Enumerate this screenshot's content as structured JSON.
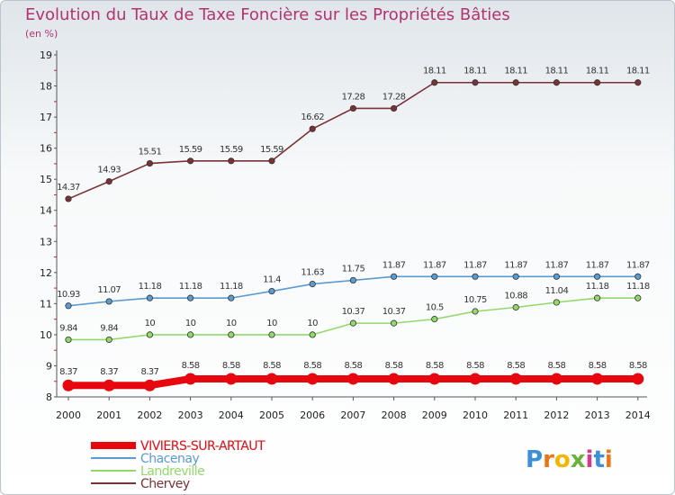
{
  "chart_data": {
    "type": "line",
    "title": "Evolution du Taux de Taxe Foncière sur les Propriétés Bâties",
    "subtitle": "(en %)",
    "xlabel": "",
    "ylabel": "",
    "ylim": [
      8,
      19
    ],
    "yticks": [
      "8",
      "9",
      "10",
      "11",
      "12",
      "13",
      "14",
      "15",
      "16",
      "17",
      "18",
      "19"
    ],
    "grid": false,
    "legend_position": "bottom-left",
    "categories": [
      "2000",
      "2001",
      "2002",
      "2003",
      "2004",
      "2005",
      "2006",
      "2007",
      "2008",
      "2009",
      "2010",
      "2011",
      "2012",
      "2013",
      "2014"
    ],
    "series": [
      {
        "name": "VIVIERS-SUR-ARTAUT",
        "color": "#e8070e",
        "values": [
          8.37,
          8.37,
          8.37,
          8.58,
          8.58,
          8.58,
          8.58,
          8.58,
          8.58,
          8.58,
          8.58,
          8.58,
          8.58,
          8.58,
          8.58
        ],
        "labels": [
          "8.37",
          "8.37",
          "8.37",
          "8.58",
          "8.58",
          "8.58",
          "8.58",
          "8.58",
          "8.58",
          "8.58",
          "8.58",
          "8.58",
          "8.58",
          "8.58",
          "8.58"
        ]
      },
      {
        "name": "Chacenay",
        "color": "#5b9bd0",
        "values": [
          10.93,
          11.07,
          11.18,
          11.18,
          11.18,
          11.4,
          11.63,
          11.75,
          11.87,
          11.87,
          11.87,
          11.87,
          11.87,
          11.87,
          11.87
        ],
        "labels": [
          "10.93",
          "11.07",
          "11.18",
          "11.18",
          "11.18",
          "11.4",
          "11.63",
          "11.75",
          "11.87",
          "11.87",
          "11.87",
          "11.87",
          "11.87",
          "11.87",
          "11.87"
        ]
      },
      {
        "name": "Landreville",
        "color": "#93d86a",
        "values": [
          9.84,
          9.84,
          10,
          10,
          10,
          10,
          10,
          10.37,
          10.37,
          10.5,
          10.75,
          10.88,
          11.04,
          11.18,
          11.18
        ],
        "labels": [
          "9.84",
          "9.84",
          "10",
          "10",
          "10",
          "10",
          "10",
          "10.37",
          "10.37",
          "10.5",
          "10.75",
          "10.88",
          "11.04",
          "11.18",
          "11.18"
        ]
      },
      {
        "name": "Chervey",
        "color": "#7a3236",
        "values": [
          14.37,
          14.93,
          15.51,
          15.59,
          15.59,
          15.59,
          16.62,
          17.28,
          17.28,
          18.11,
          18.11,
          18.11,
          18.11,
          18.11,
          18.11
        ],
        "labels": [
          "14.37",
          "14.93",
          "15.51",
          "15.59",
          "15.59",
          "15.59",
          "16.62",
          "17.28",
          "17.28",
          "18.11",
          "18.11",
          "18.11",
          "18.11",
          "18.11",
          "18.11"
        ]
      }
    ]
  },
  "brand": {
    "letters": [
      "P",
      "r",
      "o",
      "x",
      "i",
      "t",
      "i"
    ],
    "colors": [
      "#3d8fd6",
      "#e8771c",
      "#f2b500",
      "#6ab23b",
      "#d63a8a",
      "#3d8fd6",
      "#e8771c"
    ]
  }
}
